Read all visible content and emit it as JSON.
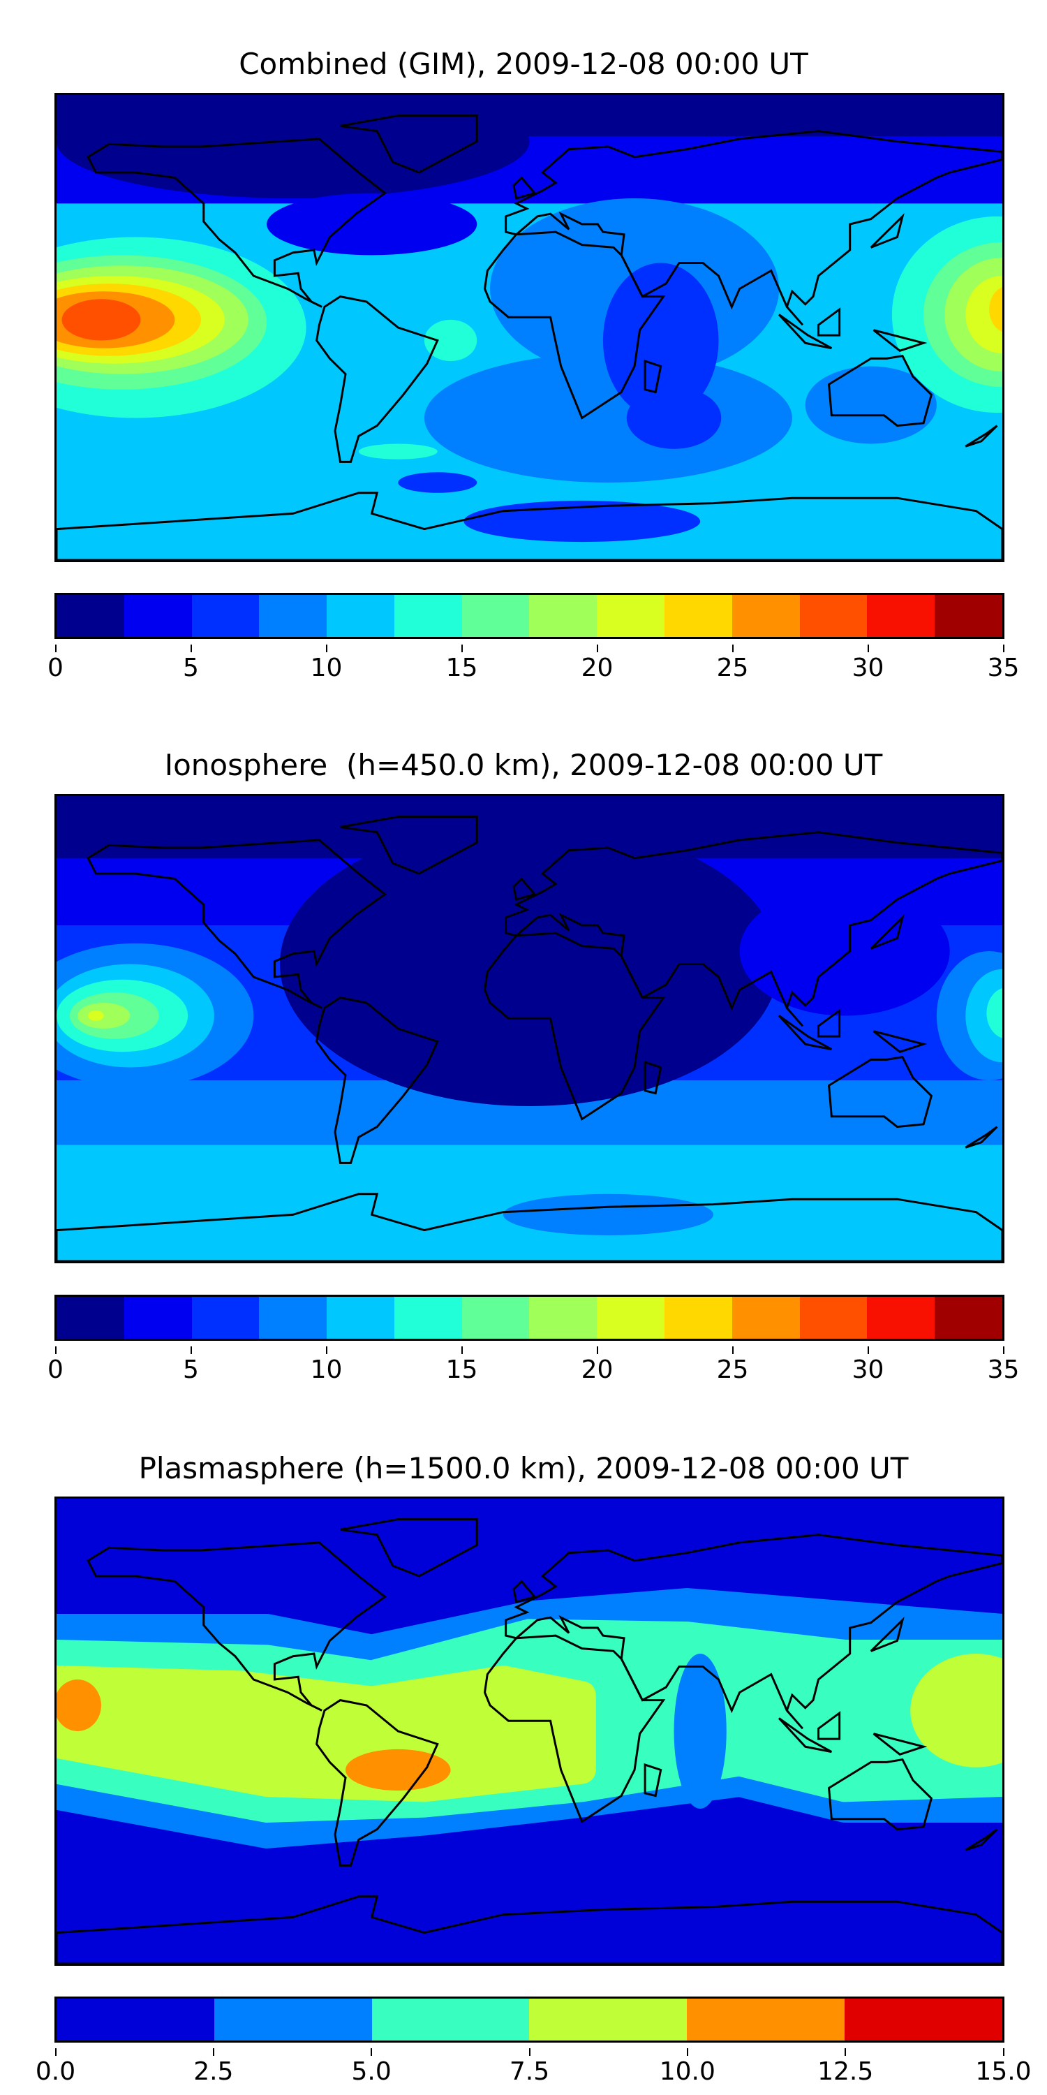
{
  "chart_data": [
    {
      "type": "heatmap",
      "title": "Combined (GIM), 2009-12-08 00:00 UT",
      "projection": "world map, lon -180..180, lat -90..90, with coastlines",
      "colorbar": {
        "levels": [
          0,
          2.5,
          5,
          7.5,
          10,
          12.5,
          15,
          17.5,
          20,
          22.5,
          25,
          27.5,
          30,
          32.5,
          35
        ],
        "ticks": [
          "0",
          "5",
          "10",
          "15",
          "20",
          "25",
          "30",
          "35"
        ],
        "colors": [
          "#00008f",
          "#0000f0",
          "#0030ff",
          "#0080ff",
          "#00c8ff",
          "#20ffd8",
          "#60ff98",
          "#a0ff58",
          "#d8ff20",
          "#ffd800",
          "#ff9000",
          "#ff5000",
          "#f81000",
          "#a00000"
        ]
      },
      "features": {
        "max_region": "central Pacific near equator, 27.5-30",
        "min_region": "northern polar/North America, 0-2.5"
      }
    },
    {
      "type": "heatmap",
      "title": "Ionosphere  (h=450.0 km), 2009-12-08 00:00 UT",
      "projection": "world map, lon -180..180, lat -90..90, with coastlines",
      "colorbar": {
        "levels": [
          0,
          2.5,
          5,
          7.5,
          10,
          12.5,
          15,
          17.5,
          20,
          22.5,
          25,
          27.5,
          30,
          32.5,
          35
        ],
        "ticks": [
          "0",
          "5",
          "10",
          "15",
          "20",
          "25",
          "30",
          "35"
        ],
        "colors": [
          "#00008f",
          "#0000f0",
          "#0030ff",
          "#0080ff",
          "#00c8ff",
          "#20ffd8",
          "#60ff98",
          "#a0ff58",
          "#d8ff20",
          "#ffd800",
          "#ff9000",
          "#ff5000",
          "#f81000",
          "#a00000"
        ]
      },
      "features": {
        "max_region": "central Pacific near equator, 20-22.5",
        "min_region": "Atlantic/Africa/Eurasia, 0-2.5"
      }
    },
    {
      "type": "heatmap",
      "title": "Plasmasphere (h=1500.0 km), 2009-12-08 00:00 UT",
      "projection": "world map, lon -180..180, lat -90..90, with coastlines",
      "colorbar": {
        "levels": [
          0,
          2.5,
          5,
          7.5,
          10,
          12.5,
          15
        ],
        "ticks": [
          "0.0",
          "2.5",
          "5.0",
          "7.5",
          "10.0",
          "12.5",
          "15.0"
        ],
        "colors": [
          "#0000d8",
          "#0080ff",
          "#38ffc0",
          "#c0ff38",
          "#ff9000",
          "#e00000"
        ]
      },
      "features": {
        "max_region": "Pacific and South America, 10-12.5",
        "min_region": "high latitudes, 0-2.5"
      }
    }
  ]
}
